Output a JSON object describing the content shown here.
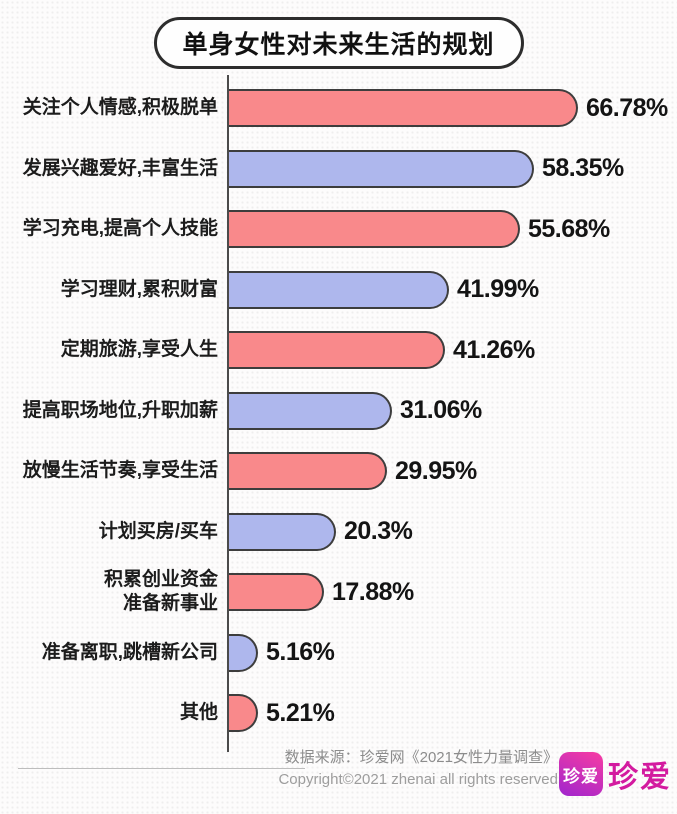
{
  "title": {
    "text": "单身女性对未来生活的规划"
  },
  "chart_data": {
    "type": "bar",
    "orientation": "horizontal",
    "title": "单身女性对未来生活的规划",
    "unit": "%",
    "xlim": [
      0,
      70
    ],
    "grid": false,
    "legend": false,
    "categories": [
      "关注个人情感,积极脱单",
      "发展兴趣爱好,丰富生活",
      "学习充电,提高个人技能",
      "学习理财,累积财富",
      "定期旅游,享受人生",
      "提高职场地位,升职加薪",
      "放慢生活节奏,享受生活",
      "计划买房/买车",
      "积累创业资金\n准备新事业",
      "准备离职,跳槽新公司",
      "其他"
    ],
    "values": [
      66.78,
      58.35,
      55.68,
      41.99,
      41.26,
      31.06,
      29.95,
      20.3,
      17.88,
      5.16,
      5.21
    ],
    "value_labels": [
      "66.78%",
      "58.35%",
      "55.68%",
      "41.99%",
      "41.26%",
      "31.06%",
      "29.95%",
      "20.3%",
      "17.88%",
      "5.16%",
      "5.21%"
    ],
    "bar_colors": [
      "pink",
      "blue",
      "pink",
      "blue",
      "pink",
      "blue",
      "pink",
      "blue",
      "pink",
      "blue",
      "pink"
    ],
    "colors": {
      "pink": "#f9898b",
      "blue": "#aeb7ed",
      "outline": "#3d3d3d"
    }
  },
  "footer": {
    "source": "数据来源：珍爱网《2021女性力量调查》",
    "copyright": "Copyright©2021 zhenai all rights reserved"
  },
  "logo": {
    "icon_text": "珍爱",
    "wordmark": "珍爱",
    "brand_color": "#d31a9f"
  }
}
